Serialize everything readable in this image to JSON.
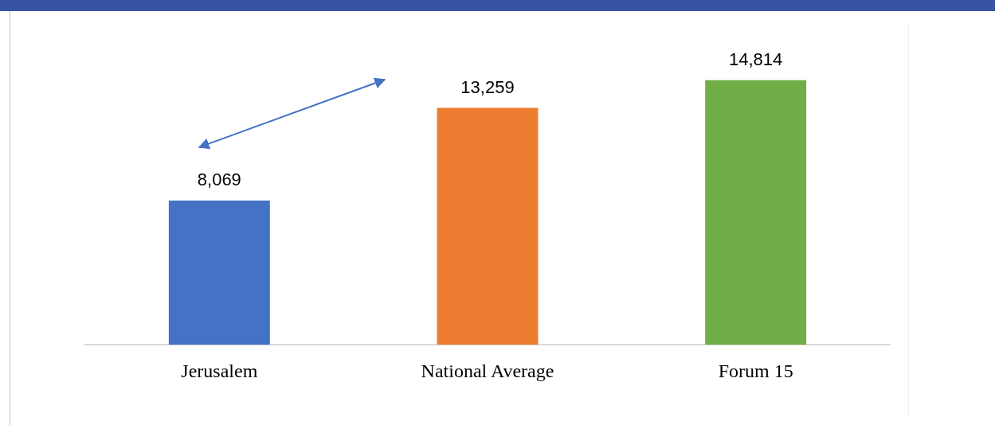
{
  "chart_data": {
    "type": "bar",
    "categories": [
      "Jerusalem",
      "National Average",
      "Forum 15"
    ],
    "values": [
      8069,
      13259,
      14814
    ],
    "value_labels": [
      "8,069",
      "13,259",
      "14,814"
    ],
    "colors": [
      "#4472c4",
      "#ed7d31",
      "#70ad47"
    ]
  }
}
